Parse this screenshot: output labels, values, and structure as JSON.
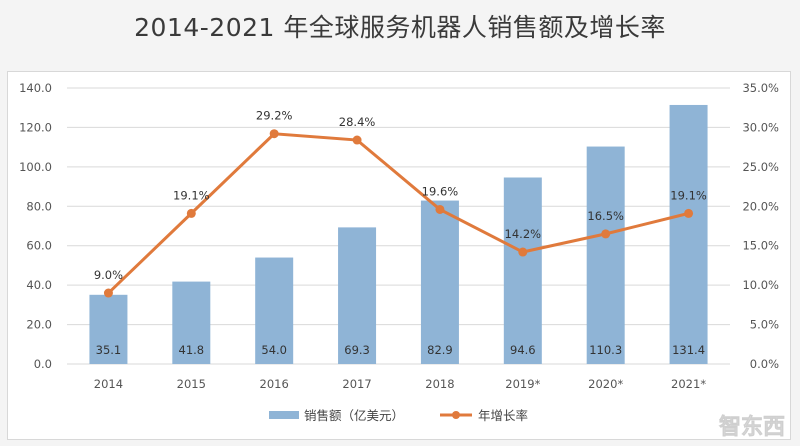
{
  "chart_data": {
    "type": "bar+line",
    "title": "2014-2021 年全球服务机器人销售额及增长率",
    "categories": [
      "2014",
      "2015",
      "2016",
      "2017",
      "2018",
      "2019*",
      "2020*",
      "2021*"
    ],
    "series": [
      {
        "name": "销售额（亿美元）",
        "type": "bar",
        "axis": "left",
        "color": "#8fb4d6",
        "values": [
          35.1,
          41.8,
          54.0,
          69.3,
          82.9,
          94.6,
          110.3,
          131.4
        ],
        "labels": [
          "35.1",
          "41.8",
          "54.0",
          "69.3",
          "82.9",
          "94.6",
          "110.3",
          "131.4"
        ]
      },
      {
        "name": "年增长率",
        "type": "line",
        "axis": "right",
        "color": "#e07a3c",
        "values": [
          9.0,
          19.1,
          29.2,
          28.4,
          19.6,
          14.2,
          16.5,
          19.1
        ],
        "labels": [
          "9.0%",
          "19.1%",
          "29.2%",
          "28.4%",
          "19.6%",
          "14.2%",
          "16.5%",
          "19.1%"
        ]
      }
    ],
    "y_left": {
      "range": [
        0,
        140
      ],
      "ticks": [
        "0.0",
        "20.0",
        "40.0",
        "60.0",
        "80.0",
        "100.0",
        "120.0",
        "140.0"
      ]
    },
    "y_right": {
      "range": [
        0,
        35
      ],
      "ticks": [
        "0.0%",
        "5.0%",
        "10.0%",
        "15.0%",
        "20.0%",
        "25.0%",
        "30.0%",
        "35.0%"
      ]
    },
    "grid": true,
    "legend": "bottom"
  },
  "watermark": "智东西"
}
